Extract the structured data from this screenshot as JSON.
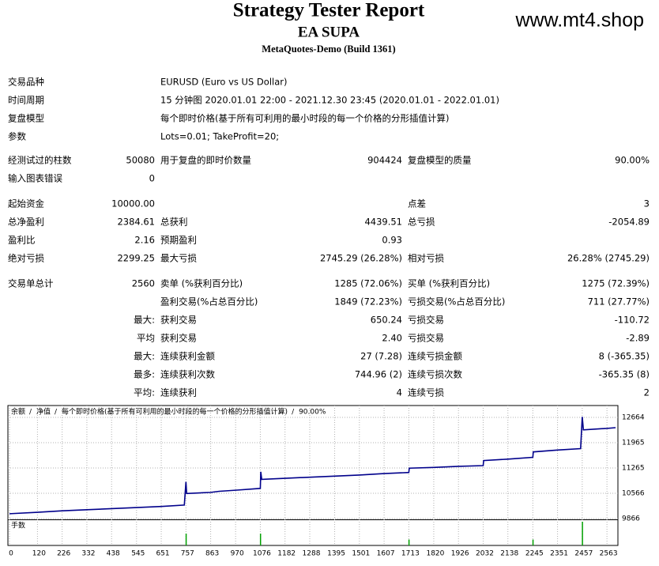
{
  "header": {
    "title": "Strategy Tester Report",
    "subtitle": "EA SUPA",
    "server": "MetaQuotes-Demo (Build 1361)",
    "watermark": "www.mt4.shop"
  },
  "table": {
    "rows": [
      [
        "交易品种",
        "EURUSD (Euro vs US Dollar)"
      ],
      [
        "时间周期",
        "15 分钟图 2020.01.01 22:00 - 2021.12.30 23:45 (2020.01.01 - 2022.01.01)"
      ],
      [
        "复盘模型",
        "每个即时价格(基于所有可利用的最小时段的每一个价格的分形插值计算)"
      ],
      [
        "参数",
        "Lots=0.01; TakeProfit=20;"
      ],
      [
        "经测试过的柱数",
        "50080",
        "用于复盘的即时价数量",
        "904424",
        "复盘模型的质量",
        "90.00%"
      ],
      [
        "输入图表错误",
        "0",
        null,
        null,
        null,
        null
      ],
      [
        "起始资金",
        "10000.00",
        null,
        null,
        "点差",
        "3"
      ],
      [
        "总净盈利",
        "2384.61",
        "总获利",
        "4439.51",
        "总亏损",
        "-2054.89"
      ],
      [
        "盈利比",
        "2.16",
        "预期盈利",
        "0.93",
        null,
        null
      ],
      [
        "绝对亏损",
        "2299.25",
        "最大亏损",
        "2745.29 (26.28%)",
        "相对亏损",
        "26.28% (2745.29)"
      ],
      [
        "交易单总计",
        "2560",
        "卖单 (%获利百分比)",
        "1285 (72.06%)",
        "买单 (%获利百分比)",
        "1275 (72.39%)"
      ],
      [
        null,
        null,
        "盈利交易(%占总百分比)",
        "1849 (72.23%)",
        "亏损交易(%占总百分比)",
        "711 (27.77%)"
      ],
      [
        null,
        "最大:",
        "获利交易",
        "650.24",
        "亏损交易",
        "-110.72"
      ],
      [
        null,
        "平均",
        "获利交易",
        "2.40",
        "亏损交易",
        "-2.89"
      ],
      [
        null,
        "最大:",
        "连续获利金额",
        "27 (7.28)",
        "连续亏损金额",
        "8 (-365.35)"
      ],
      [
        null,
        "最多:",
        "连续获利次数",
        "744.96 (2)",
        "连续亏损次数",
        "-365.35 (8)"
      ],
      [
        null,
        "平均:",
        "连续获利",
        "4",
        "连续亏损",
        "2"
      ]
    ]
  },
  "chart_data": {
    "type": "line",
    "legend": [
      "余额",
      "净值",
      "每个即时价格(基于所有可利用的最小时段的每一个价格的分形插值计算)",
      "90.00%"
    ],
    "volume_label": "手数",
    "x": [
      0,
      120,
      226,
      332,
      438,
      545,
      651,
      750,
      757,
      760,
      863,
      900,
      970,
      1076,
      1078,
      1082,
      1182,
      1288,
      1395,
      1501,
      1607,
      1713,
      1715,
      1820,
      1926,
      2032,
      2034,
      2138,
      2245,
      2247,
      2351,
      2450,
      2457,
      2462,
      2563,
      2600
    ],
    "series": [
      {
        "name": "余额",
        "color": "#00008b",
        "values": [
          10000,
          10040,
          10080,
          10110,
          10140,
          10170,
          10200,
          10240,
          10880,
          10560,
          10590,
          10620,
          10650,
          10700,
          11160,
          10950,
          10980,
          11010,
          11040,
          11070,
          11110,
          11140,
          11260,
          11280,
          11310,
          11330,
          11470,
          11510,
          11560,
          11710,
          11760,
          11800,
          12680,
          12320,
          12360,
          12380
        ]
      }
    ],
    "volume": {
      "color": "#00a000",
      "x": [
        757,
        1076,
        1713,
        2245,
        2457
      ],
      "values": [
        2,
        2,
        1,
        1,
        4
      ],
      "ylim": [
        0,
        4
      ]
    },
    "xlim": [
      0,
      2610
    ],
    "ylim": [
      9844,
      12992
    ],
    "xticks": [
      0,
      120,
      226,
      332,
      438,
      545,
      651,
      757,
      863,
      970,
      1076,
      1182,
      1288,
      1395,
      1501,
      1607,
      1713,
      1820,
      1926,
      2032,
      2138,
      2245,
      2351,
      2457,
      2563
    ],
    "yticks": [
      9866,
      10566,
      11265,
      11965,
      12664
    ],
    "grid": true
  }
}
